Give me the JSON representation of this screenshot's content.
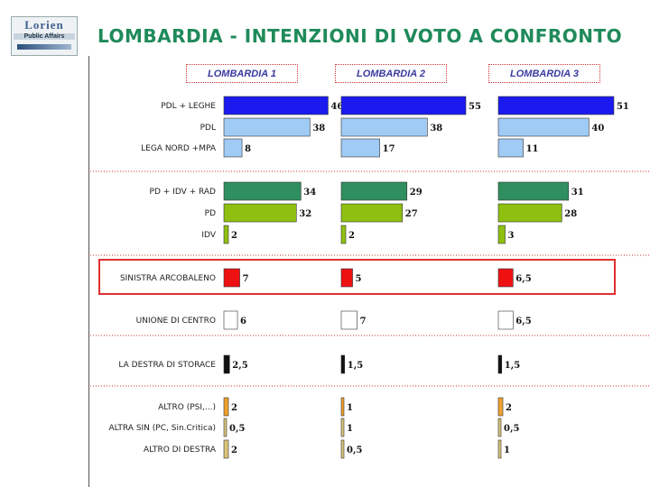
{
  "header": {
    "logo_text": "Lorien",
    "logo_tagline": "Public Affairs",
    "title": "LOMBARDIA -  INTENZIONI DI VOTO A CONFRONTO"
  },
  "colors": {
    "pdl_leghe": "#1a1aee",
    "light_blue": "#9fcbf5",
    "teal_green": "#2f8f5f",
    "lime": "#8fc010",
    "red": "#ee1111",
    "white": "#ffffff",
    "black": "#111111",
    "orange": "#f0a030",
    "tan": "#d9c47a"
  },
  "chart_data": {
    "type": "bar",
    "orientation": "horizontal",
    "panels": [
      "LOMBARDIA 1",
      "LOMBARDIA 2",
      "LOMBARDIA 3"
    ],
    "categories": [
      "PDL + LEGHE",
      "PDL",
      "LEGA NORD +MPA",
      "PD + IDV + RAD",
      "PD",
      "IDV",
      "SINISTRA ARCOBALENO",
      "UNIONE DI CENTRO",
      "LA DESTRA DI STORACE",
      "ALTRO (PSI,...)",
      "ALTRA SIN (PC, Sin.Critica)",
      "ALTRO DI DESTRA"
    ],
    "category_colors": [
      "#1a1aee",
      "#9fcbf5",
      "#9fcbf5",
      "#2f8f5f",
      "#8fc010",
      "#8fc010",
      "#ee1111",
      "#ffffff",
      "#111111",
      "#f0a030",
      "#d9c47a",
      "#d9c47a"
    ],
    "series": [
      {
        "values": [
          46,
          38,
          8,
          34,
          32,
          2,
          7,
          6,
          2.5,
          2,
          0.5,
          2
        ],
        "labels": [
          "46",
          "38",
          "8",
          "34",
          "32",
          "2",
          "7",
          "6",
          "2,5",
          "2",
          "0,5",
          "2"
        ]
      },
      {
        "values": [
          55,
          38,
          17,
          29,
          27,
          2,
          5,
          7,
          1.5,
          1,
          1,
          0.5
        ],
        "labels": [
          "55",
          "38",
          "17",
          "29",
          "27",
          "2",
          "5",
          "7",
          "1,5",
          "1",
          "1",
          "0,5"
        ]
      },
      {
        "values": [
          51,
          40,
          11,
          31,
          28,
          3,
          6.5,
          6.5,
          1.5,
          2,
          0.5,
          1
        ],
        "labels": [
          "51",
          "40",
          "11",
          "31",
          "28",
          "3",
          "6,5",
          "6,5",
          "1,5",
          "2",
          "0,5",
          "1"
        ]
      }
    ],
    "highlighted_category": "SINISTRA ARCOBALENO",
    "grid": false
  }
}
